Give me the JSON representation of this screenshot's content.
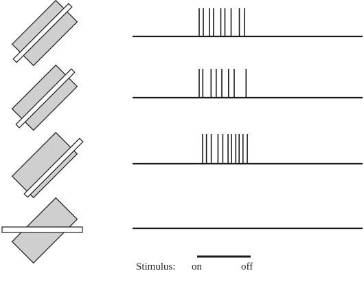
{
  "stimulus": {
    "label": "Stimulus:",
    "on_label": "on",
    "off_label": "off"
  },
  "colors": {
    "stimulus_fill": "#cfcfcf",
    "line": "#1a1a1a",
    "bar_fill": "#ffffff"
  },
  "rows": [
    {
      "name": "bar-centered-in-field",
      "spike_count": 9,
      "spikes_ms_normalized": [
        0.0,
        0.08,
        0.2,
        0.28,
        0.42,
        0.5,
        0.62,
        0.78,
        0.88
      ]
    },
    {
      "name": "bar-shifted-slightly",
      "spike_count": 8,
      "spikes_ms_normalized": [
        0.0,
        0.07,
        0.23,
        0.33,
        0.44,
        0.57,
        0.68,
        0.91
      ]
    },
    {
      "name": "bar-at-edge-of-field",
      "spike_count": 11,
      "spikes_ms_normalized": [
        0.0,
        0.08,
        0.18,
        0.32,
        0.42,
        0.53,
        0.6,
        0.69,
        0.76,
        0.84,
        0.93
      ]
    },
    {
      "name": "bar-orthogonal",
      "spike_count": 0,
      "spikes_ms_normalized": []
    }
  ]
}
